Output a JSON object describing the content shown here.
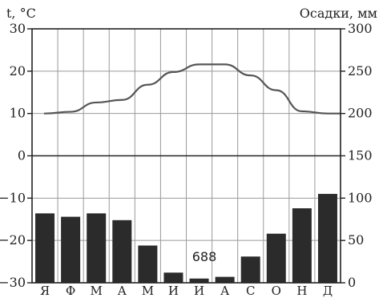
{
  "chart_data": {
    "type": "bar+line",
    "categories": [
      "Я",
      "Ф",
      "М",
      "А",
      "М",
      "И",
      "И",
      "А",
      "С",
      "О",
      "Н",
      "Д"
    ],
    "left_axis": {
      "label": "t, °C",
      "range": [
        -30,
        30
      ],
      "ticks": [
        "30",
        "20",
        "10",
        "0",
        "-10",
        "-20",
        "-30"
      ]
    },
    "right_axis": {
      "label": "Осадки, мм",
      "range": [
        0,
        300
      ],
      "ticks": [
        "300",
        "250",
        "200",
        "150",
        "100",
        "50",
        "0"
      ]
    },
    "temperature": [
      10,
      10.4,
      12.6,
      13.2,
      16.8,
      19.8,
      21.6,
      21.6,
      19,
      15.5,
      10.5,
      10
    ],
    "precipitation": [
      82,
      78,
      82,
      74,
      44,
      12,
      5,
      7,
      31,
      58,
      88,
      105
    ],
    "annotation": "688",
    "grid": true,
    "bar_color": "#2b2b2b",
    "line_color": "#555555"
  }
}
